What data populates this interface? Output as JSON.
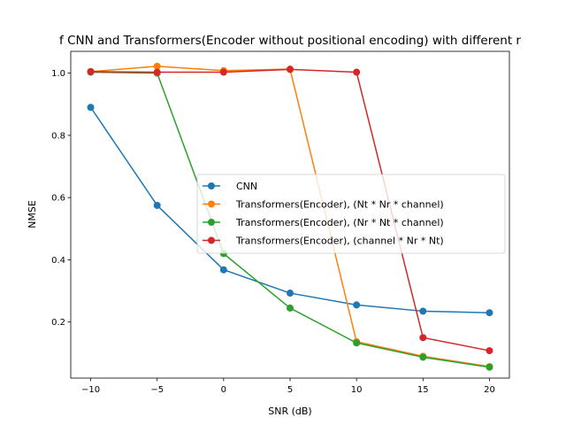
{
  "chart_data": {
    "type": "line",
    "title": "f CNN and Transformers(Encoder without positional encoding) with different r",
    "xlabel": "SNR (dB)",
    "ylabel": "NMSE",
    "x": [
      -10,
      -5,
      0,
      5,
      10,
      15,
      20
    ],
    "xlim": [
      -11.5,
      21.5
    ],
    "ylim": [
      0.02,
      1.07
    ],
    "xticks": [
      -10,
      -5,
      0,
      5,
      10,
      15,
      20
    ],
    "xtick_labels": [
      "−10",
      "−5",
      "0",
      "5",
      "10",
      "15",
      "20"
    ],
    "yticks": [
      0.2,
      0.4,
      0.6,
      0.8,
      1.0
    ],
    "ytick_labels": [
      "0.2",
      "0.4",
      "0.6",
      "0.8",
      "1.0"
    ],
    "grid": false,
    "legend_position": "center-right",
    "series": [
      {
        "name": "CNN",
        "color": "#1f77b4",
        "values": [
          0.89,
          0.575,
          0.368,
          0.293,
          0.255,
          0.235,
          0.23
        ]
      },
      {
        "name": "Transformers(Encoder), (Nt * Nr * channel)",
        "color": "#ff7f0e",
        "values": [
          1.005,
          1.022,
          1.008,
          1.013,
          0.137,
          0.09,
          0.057
        ]
      },
      {
        "name": "Transformers(Encoder), (Nr * Nt * channel)",
        "color": "#2ca02c",
        "values": [
          1.003,
          1.0,
          0.42,
          0.245,
          0.133,
          0.087,
          0.055
        ]
      },
      {
        "name": "Transformers(Encoder), (channel * Nr * Nt)",
        "color": "#d62728",
        "values": [
          1.005,
          1.003,
          1.003,
          1.012,
          1.003,
          0.15,
          0.108
        ]
      }
    ]
  }
}
